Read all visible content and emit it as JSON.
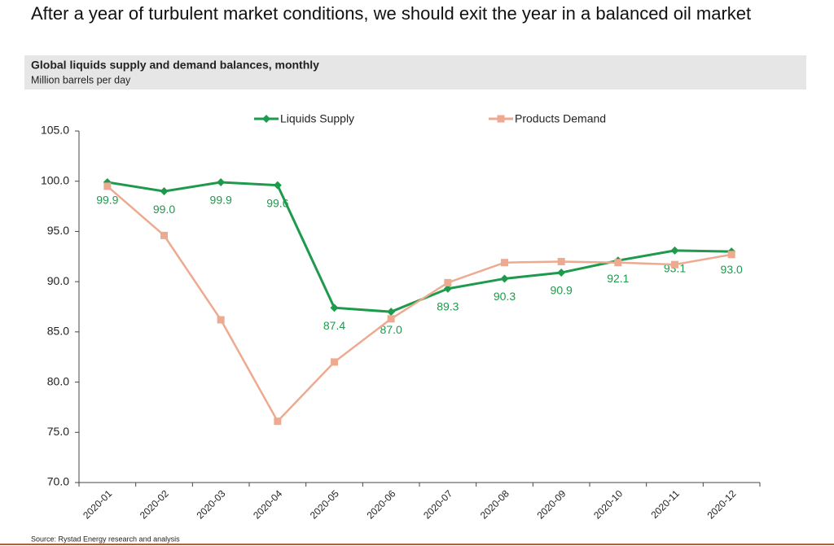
{
  "title": "After a year of turbulent market conditions, we should exit the year in a balanced oil market",
  "source": "Source: Rystad Energy research and analysis",
  "chart_data": {
    "type": "line",
    "title": "Global liquids supply and demand balances, monthly",
    "subtitle": "Million barrels per day",
    "categories": [
      "2020-01",
      "2020-02",
      "2020-03",
      "2020-04",
      "2020-05",
      "2020-06",
      "2020-07",
      "2020-08",
      "2020-09",
      "2020-10",
      "2020-11",
      "2020-12"
    ],
    "series": [
      {
        "name": "Liquids Supply",
        "color": "#1e9a4c",
        "marker": "diamond",
        "values": [
          99.9,
          99.0,
          99.9,
          99.6,
          87.4,
          87.0,
          89.3,
          90.3,
          90.9,
          92.1,
          93.1,
          93.0
        ],
        "value_labels": [
          "99.9",
          "99.0",
          "99.9",
          "99.6",
          "87.4",
          "87.0",
          "89.3",
          "90.3",
          "90.9",
          "92.1",
          "93.1",
          "93.0"
        ]
      },
      {
        "name": "Products Demand",
        "color": "#eeaa90",
        "marker": "square",
        "values": [
          99.5,
          94.6,
          86.2,
          76.1,
          82.0,
          86.3,
          89.9,
          91.9,
          92.0,
          91.9,
          91.7,
          92.7
        ]
      }
    ],
    "ylim": [
      70,
      105
    ],
    "yticks": [
      {
        "value": 70,
        "label": "70.0"
      },
      {
        "value": 75,
        "label": "75.0"
      },
      {
        "value": 80,
        "label": "80.0"
      },
      {
        "value": 85,
        "label": "85.0"
      },
      {
        "value": 90,
        "label": "90.0"
      },
      {
        "value": 95,
        "label": "95.0"
      },
      {
        "value": 100,
        "label": "100.0"
      },
      {
        "value": 105,
        "label": "105.0"
      }
    ],
    "legend": "top"
  }
}
